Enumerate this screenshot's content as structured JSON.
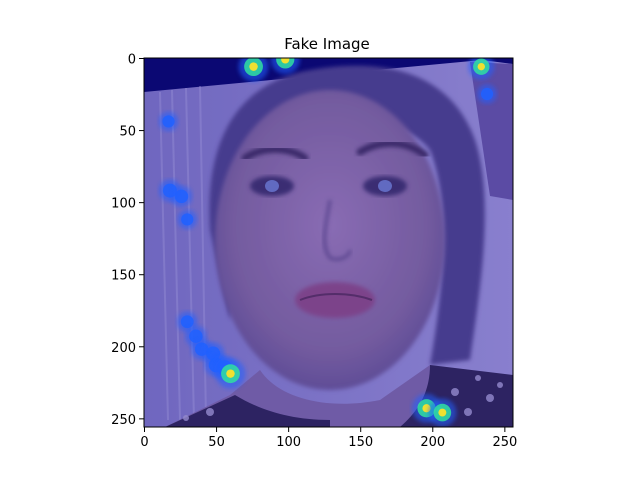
{
  "chart_data": {
    "type": "heatmap",
    "title": "Fake Image",
    "xlabel": "",
    "ylabel": "",
    "xlim": [
      0,
      256
    ],
    "ylim": [
      256,
      0
    ],
    "x_ticks": [
      0,
      50,
      100,
      150,
      200,
      250
    ],
    "y_ticks": [
      0,
      50,
      100,
      150,
      200,
      250
    ],
    "grid": false,
    "image_content": "face photograph overlaid with jet-colormap attention heatmap",
    "colors": {
      "background_low": "#00006a",
      "overlay_tint": "#5a52b8",
      "hot_high": "#f0e030",
      "hot_mid": "#30e0a0",
      "hot_low": "#2060ff"
    },
    "hotspots": [
      {
        "x": 76,
        "y": 6,
        "level": 0.9
      },
      {
        "x": 98,
        "y": 1,
        "level": 0.85
      },
      {
        "x": 234,
        "y": 6,
        "level": 0.7
      },
      {
        "x": 238,
        "y": 25,
        "level": 0.35
      },
      {
        "x": 17,
        "y": 44,
        "level": 0.35
      },
      {
        "x": 18,
        "y": 92,
        "level": 0.5
      },
      {
        "x": 26,
        "y": 96,
        "level": 0.45
      },
      {
        "x": 30,
        "y": 112,
        "level": 0.35
      },
      {
        "x": 30,
        "y": 183,
        "level": 0.4
      },
      {
        "x": 36,
        "y": 193,
        "level": 0.45
      },
      {
        "x": 40,
        "y": 202,
        "level": 0.45
      },
      {
        "x": 48,
        "y": 205,
        "level": 0.5
      },
      {
        "x": 50,
        "y": 213,
        "level": 0.55
      },
      {
        "x": 56,
        "y": 215,
        "level": 0.6
      },
      {
        "x": 60,
        "y": 219,
        "level": 0.9
      },
      {
        "x": 196,
        "y": 243,
        "level": 0.85
      },
      {
        "x": 207,
        "y": 246,
        "level": 0.8
      }
    ]
  }
}
